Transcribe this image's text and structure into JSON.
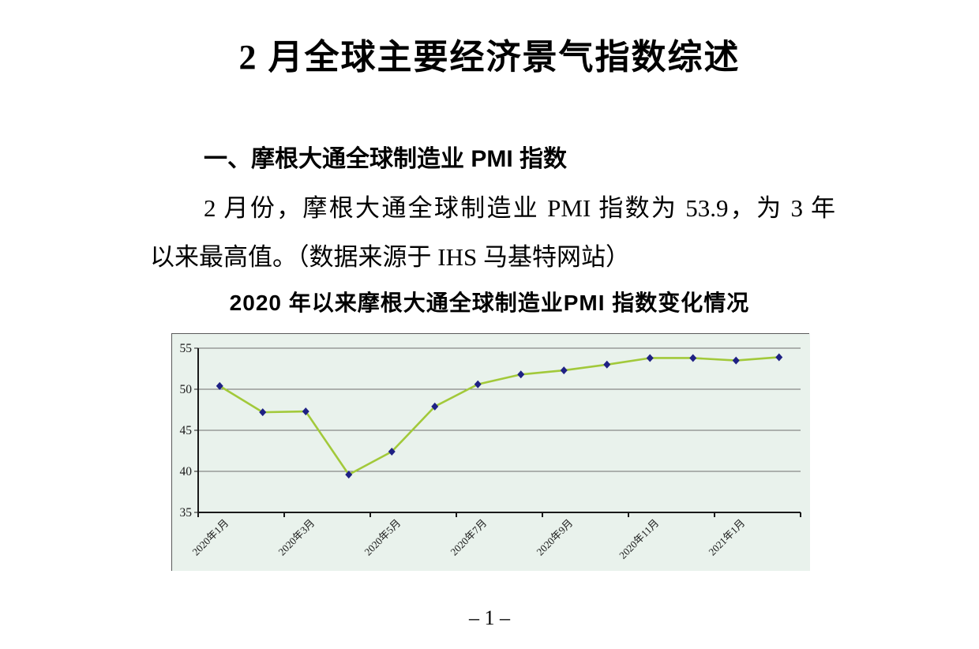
{
  "page": {
    "title": "2 月全球主要经济景气指数综述",
    "section_heading": "一、摩根大通全球制造业 PMI 指数",
    "paragraph_line1": "2 月份，摩根大通全球制造业 PMI 指数为 53.9，为 3 年",
    "paragraph_line2": "以来最高值。（数据来源于 IHS 马基特网站）",
    "page_number": "– 1 –"
  },
  "chart_data": {
    "type": "line",
    "title": "2020 年以来摩根大通全球制造业PMI 指数变化情况",
    "categories": [
      "2020年1月",
      "2020年2月",
      "2020年3月",
      "2020年4月",
      "2020年5月",
      "2020年6月",
      "2020年7月",
      "2020年8月",
      "2020年9月",
      "2020年10月",
      "2020年11月",
      "2020年12月",
      "2021年1月",
      "2021年2月"
    ],
    "values": [
      50.4,
      47.2,
      47.3,
      39.6,
      42.4,
      47.9,
      50.6,
      51.8,
      52.3,
      53.0,
      53.8,
      53.8,
      53.5,
      53.9
    ],
    "labeled_category_indices": [
      0,
      2,
      4,
      6,
      8,
      10,
      12
    ],
    "x_tick_labels": [
      "2020年1月",
      "2020年3月",
      "2020年5月",
      "2020年7月",
      "2020年9月",
      "2020年11月",
      "2021年1月"
    ],
    "y_ticks": [
      35,
      40,
      45,
      50,
      55
    ],
    "ylim": [
      35,
      55
    ],
    "xlabel": "",
    "ylabel": "",
    "grid": true,
    "legend": "none",
    "colors": {
      "plot_background": "#e9f2ec",
      "line": "#a2c93a",
      "marker": "#1f2184",
      "gridline": "#6e6e6e",
      "axis": "#1a1a1a",
      "tick_text": "#1a1a1a",
      "border": "#5a5a5a"
    }
  }
}
